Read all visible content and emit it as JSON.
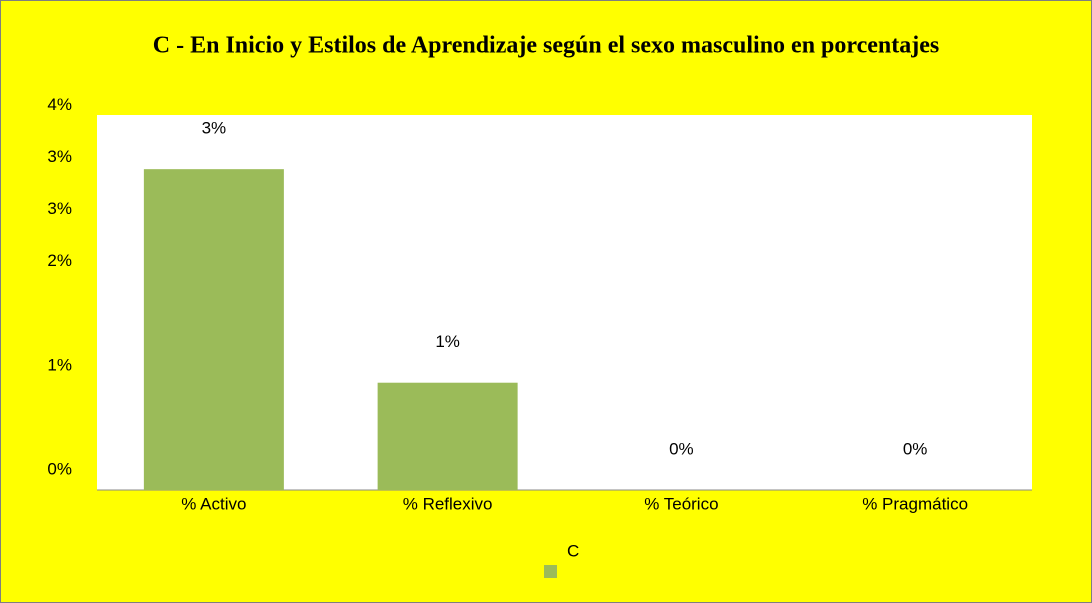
{
  "chart_data": {
    "type": "bar",
    "title": "C - En Inicio y Estilos de Aprendizaje según el sexo masculino en porcentajes",
    "categories": [
      "% Activo",
      "% Reflexivo",
      "% Teórico",
      "% Pragmático"
    ],
    "series": [
      {
        "name": "C",
        "color": "#9bbb59",
        "values": [
          3.08,
          1.03,
          0,
          0
        ],
        "value_labels": [
          "3%",
          "1%",
          "0%",
          "0%"
        ]
      }
    ],
    "ylim": [
      0,
      3.6
    ],
    "yticks": [
      {
        "value": 0,
        "label": "0%"
      },
      {
        "value": 1,
        "label": "1%"
      },
      {
        "value": 2,
        "label": "2%"
      },
      {
        "value": 2.5,
        "label": "3%"
      },
      {
        "value": 3,
        "label": "3%"
      },
      {
        "value": 3.5,
        "label": "4%"
      }
    ],
    "background": "#ffff00",
    "plot_background": "#ffffff",
    "legend": "bottom"
  }
}
